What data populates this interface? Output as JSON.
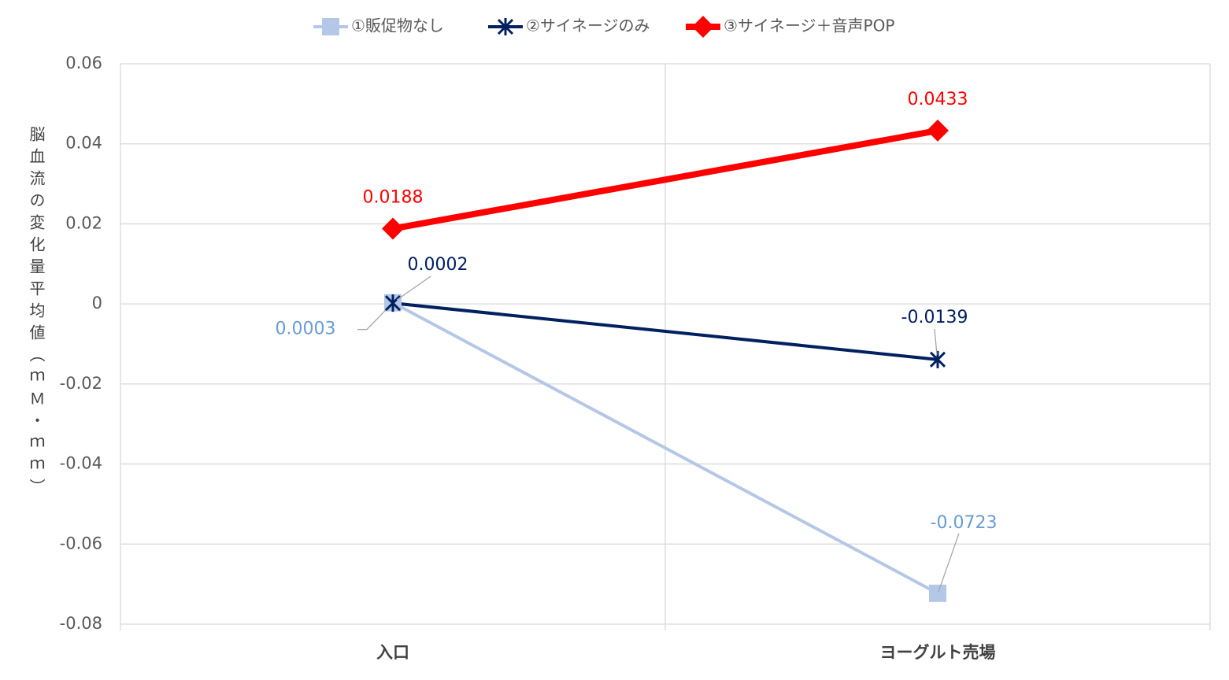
{
  "chart_data": {
    "type": "line",
    "y_label": "脳血流の変化量平均値（ｍＭ・ｍｍ）",
    "categories": [
      "入口",
      "ヨーグルト売場"
    ],
    "series": [
      {
        "name": "①販促物なし",
        "color": "#b4c7e7",
        "marker": "square",
        "values": [
          0.0003,
          -0.0723
        ]
      },
      {
        "name": "②サイネージのみ",
        "color": "#002060",
        "marker": "x",
        "values": [
          0.0002,
          -0.0139
        ]
      },
      {
        "name": "③サイネージ＋音声POP",
        "color": "#ff0000",
        "marker": "diamond",
        "values": [
          0.0188,
          0.0433
        ]
      }
    ],
    "ylim": [
      -0.08,
      0.06
    ],
    "yticks": [
      -0.08,
      -0.06,
      -0.04,
      -0.02,
      0,
      0.02,
      0.04,
      0.06
    ],
    "grid": true,
    "legend": "top",
    "data_labels": true
  }
}
